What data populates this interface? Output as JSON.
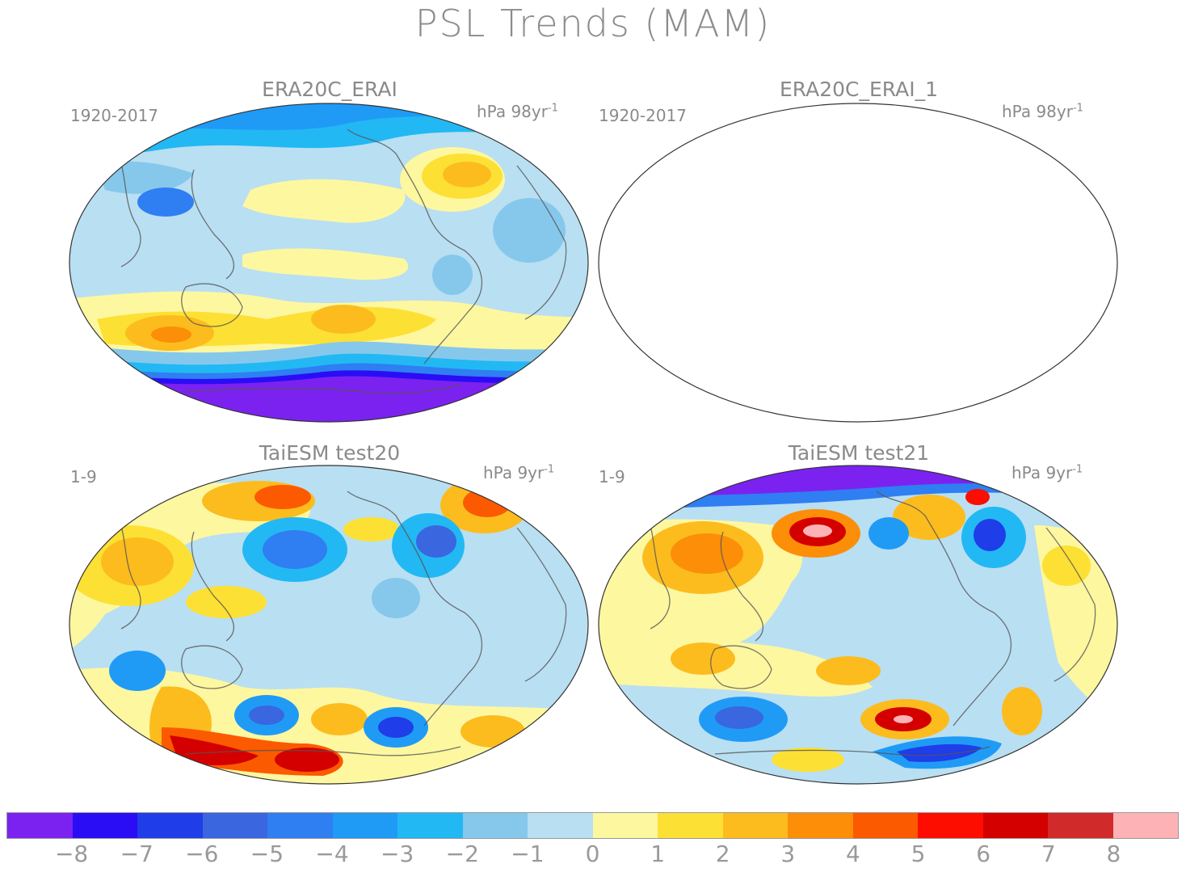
{
  "title": "PSL Trends (MAM)",
  "panels": [
    {
      "title": "ERA20C_ERAI",
      "period": "1920-2017",
      "units_prefix": "hPa 98yr",
      "units_exp": "-1"
    },
    {
      "title": "ERA20C_ERAI_1",
      "period": "1920-2017",
      "units_prefix": "hPa 98yr",
      "units_exp": "-1"
    },
    {
      "title": "TaiESM test20",
      "period": "1-9",
      "units_prefix": "hPa 9yr",
      "units_exp": "-1"
    },
    {
      "title": "TaiESM test21",
      "period": "1-9",
      "units_prefix": "hPa 9yr",
      "units_exp": "-1"
    }
  ],
  "colorbar": {
    "colors": [
      "#7b22f0",
      "#2a0df5",
      "#1f3de8",
      "#3a66e0",
      "#2f7ef2",
      "#1f9bf6",
      "#22b8f4",
      "#86c8ec",
      "#b9dff2",
      "#fdf7a0",
      "#fde034",
      "#fcbc1e",
      "#fc8e08",
      "#fc5a00",
      "#fc0d00",
      "#d40000",
      "#d02a2a",
      "#fdb3b6"
    ],
    "labels": [
      "-8",
      "-7",
      "-6",
      "-5",
      "-4",
      "-3",
      "-2",
      "-1",
      "0",
      "1",
      "2",
      "3",
      "4",
      "5",
      "6",
      "7",
      "8"
    ]
  }
}
